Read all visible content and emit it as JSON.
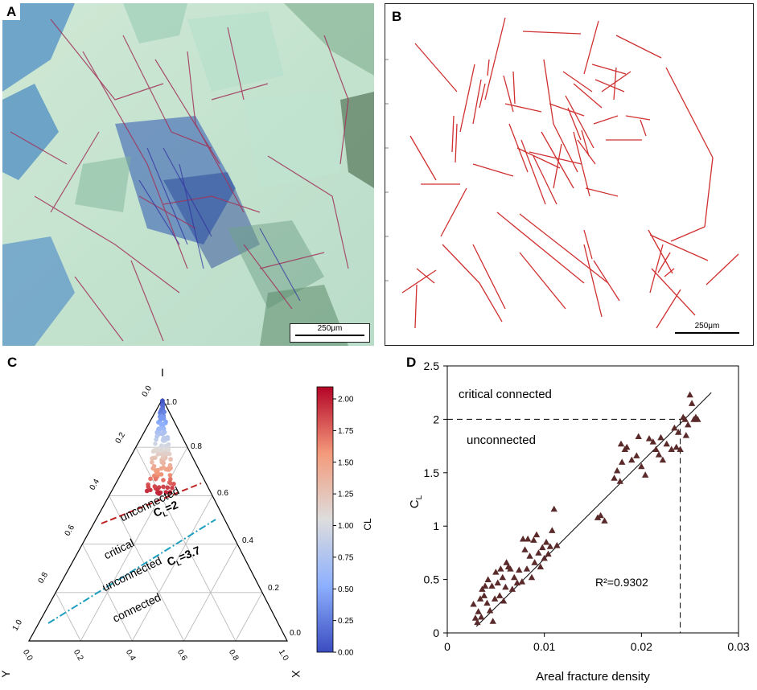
{
  "panels": {
    "a": {
      "letter": "A",
      "scalebar": "250μm"
    },
    "b": {
      "letter": "B",
      "scalebar": "250μm"
    },
    "c": {
      "letter": "C",
      "corner_i": "I",
      "corner_y": "Y",
      "corner_x": "X",
      "left_ticks": [
        "0.0",
        "0.2",
        "0.4",
        "0.6",
        "0.8",
        "1.0"
      ],
      "right_ticks": [
        "1.0",
        "0.8",
        "0.6",
        "0.4",
        "0.2",
        "0.0"
      ],
      "bottom_ticks": [
        "0.0",
        "0.2",
        "0.4",
        "0.6",
        "0.8",
        "1.0"
      ],
      "regions": {
        "unconnected": "unconnected",
        "critical": "critical",
        "critical_unconnected": "unconnected",
        "connected": "connected"
      },
      "line_labels": {
        "cl2_prefix": "C",
        "cl2_sub": "L",
        "cl2_value": "=2",
        "cl37_prefix": "C",
        "cl37_sub": "L",
        "cl37_value": "=3.7"
      },
      "colorbar": {
        "label": "CL",
        "ticks": [
          "0.00",
          "0.25",
          "0.50",
          "0.75",
          "1.00",
          "1.25",
          "1.50",
          "1.75",
          "2.00"
        ],
        "colors": [
          "#3b4cc0",
          "#b40426"
        ]
      }
    },
    "d": {
      "letter": "D",
      "ylabel_prefix": "C",
      "ylabel_sub": "L",
      "xlabel": "Areal fracture density",
      "region_top": "critical connected",
      "region_bottom": "unconnected",
      "r2_text": "R²=0.9302"
    }
  },
  "chart_data": {
    "type": "scatter",
    "xlabel": "Areal fracture density",
    "ylabel": "CL",
    "xlim": [
      0,
      0.03
    ],
    "ylim": [
      0,
      2.5
    ],
    "x_ticks": [
      "0",
      "0.01",
      "0.02",
      "0.03"
    ],
    "y_ticks": [
      "0",
      "0.5",
      "1",
      "1.5",
      "2",
      "2.5"
    ],
    "marker_color": "#5a2a2a",
    "threshold_y": 2.0,
    "threshold_x": 0.024,
    "fit_line": {
      "x": [
        0.003,
        0.0272
      ],
      "y": [
        0.06,
        2.25
      ],
      "r2": 0.9302
    },
    "points": [
      [
        0.0027,
        0.27
      ],
      [
        0.0029,
        0.14
      ],
      [
        0.0031,
        0.1
      ],
      [
        0.0032,
        0.2
      ],
      [
        0.0034,
        0.32
      ],
      [
        0.0035,
        0.15
      ],
      [
        0.0036,
        0.41
      ],
      [
        0.0038,
        0.35
      ],
      [
        0.0039,
        0.44
      ],
      [
        0.0041,
        0.28
      ],
      [
        0.0042,
        0.5
      ],
      [
        0.0044,
        0.21
      ],
      [
        0.0046,
        0.44
      ],
      [
        0.0047,
        0.11
      ],
      [
        0.0049,
        0.32
      ],
      [
        0.005,
        0.57
      ],
      [
        0.0052,
        0.47
      ],
      [
        0.0054,
        0.35
      ],
      [
        0.0055,
        0.6
      ],
      [
        0.0057,
        0.52
      ],
      [
        0.0058,
        0.3
      ],
      [
        0.006,
        0.43
      ],
      [
        0.0061,
        0.66
      ],
      [
        0.0063,
        0.62
      ],
      [
        0.0065,
        0.6
      ],
      [
        0.0067,
        0.41
      ],
      [
        0.0069,
        0.52
      ],
      [
        0.0072,
        0.47
      ],
      [
        0.0074,
        0.59
      ],
      [
        0.0077,
        0.48
      ],
      [
        0.0078,
        0.88
      ],
      [
        0.008,
        0.78
      ],
      [
        0.0082,
        0.6
      ],
      [
        0.0083,
        0.88
      ],
      [
        0.0085,
        0.72
      ],
      [
        0.0087,
        0.52
      ],
      [
        0.0089,
        0.87
      ],
      [
        0.009,
        0.66
      ],
      [
        0.0092,
        0.92
      ],
      [
        0.0094,
        0.75
      ],
      [
        0.0096,
        0.62
      ],
      [
        0.0098,
        0.8
      ],
      [
        0.01,
        0.7
      ],
      [
        0.0102,
        0.85
      ],
      [
        0.0104,
        0.74
      ],
      [
        0.0106,
        0.81
      ],
      [
        0.0108,
        0.96
      ],
      [
        0.011,
        1.16
      ],
      [
        0.0113,
        0.82
      ],
      [
        0.0155,
        1.08
      ],
      [
        0.0158,
        1.1
      ],
      [
        0.0162,
        1.05
      ],
      [
        0.0172,
        1.45
      ],
      [
        0.0175,
        1.52
      ],
      [
        0.0178,
        1.42
      ],
      [
        0.0179,
        1.77
      ],
      [
        0.018,
        1.6
      ],
      [
        0.0183,
        1.72
      ],
      [
        0.0185,
        1.74
      ],
      [
        0.019,
        1.62
      ],
      [
        0.0195,
        1.66
      ],
      [
        0.0197,
        1.84
      ],
      [
        0.02,
        1.56
      ],
      [
        0.0204,
        1.48
      ],
      [
        0.0208,
        1.82
      ],
      [
        0.0212,
        1.79
      ],
      [
        0.0215,
        1.72
      ],
      [
        0.0218,
        1.67
      ],
      [
        0.022,
        1.83
      ],
      [
        0.0222,
        1.62
      ],
      [
        0.0226,
        1.77
      ],
      [
        0.0231,
        1.72
      ],
      [
        0.0234,
        1.92
      ],
      [
        0.0236,
        1.74
      ],
      [
        0.0238,
        1.88
      ],
      [
        0.024,
        1.72
      ],
      [
        0.0243,
        2.02
      ],
      [
        0.0245,
        2.0
      ],
      [
        0.0246,
        1.85
      ],
      [
        0.0248,
        1.95
      ],
      [
        0.025,
        2.23
      ],
      [
        0.0252,
        2.15
      ],
      [
        0.0254,
        2.0
      ],
      [
        0.0256,
        2.02
      ],
      [
        0.0258,
        2.0
      ]
    ]
  }
}
